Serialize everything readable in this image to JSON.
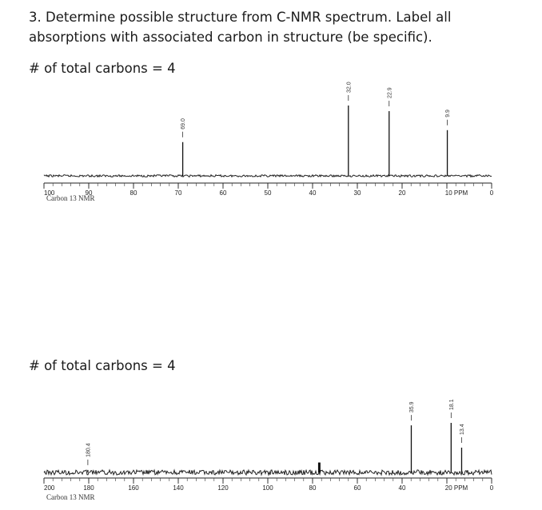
{
  "question": {
    "title": "3. Determine possible structure from C-NMR spectrum. Label all absorptions with associated carbon in structure (be specific).",
    "count1": "# of total carbons = 4",
    "count2": "# of total carbons = 4"
  },
  "chart_data": [
    {
      "type": "line",
      "xlabel": "",
      "ylabel": "",
      "x_reversed": true,
      "xlim": [
        100,
        0
      ],
      "tick_labels": [
        "100",
        "90",
        "80",
        "70",
        "60",
        "50",
        "40",
        "30",
        "20",
        "10 PPM",
        "0"
      ],
      "tick_values": [
        100,
        90,
        80,
        70,
        60,
        50,
        40,
        30,
        20,
        10,
        0
      ],
      "caption": "Carbon 13 NMR",
      "peaks": [
        {
          "ppm": 69.0,
          "label": "69.0",
          "height": 0.48
        },
        {
          "ppm": 32.0,
          "label": "32.0",
          "height": 1.0
        },
        {
          "ppm": 22.9,
          "label": "22.9",
          "height": 0.92
        },
        {
          "ppm": 9.9,
          "label": "9.9",
          "height": 0.65
        }
      ],
      "noise": 0.003
    },
    {
      "type": "line",
      "xlabel": "",
      "ylabel": "",
      "x_reversed": true,
      "xlim": [
        200,
        0
      ],
      "tick_labels": [
        "200",
        "180",
        "160",
        "140",
        "120",
        "100",
        "80",
        "60",
        "40",
        "20 PPM",
        "0"
      ],
      "tick_values": [
        200,
        180,
        160,
        140,
        120,
        100,
        80,
        60,
        40,
        20,
        0
      ],
      "caption": "Carbon 13 NMR",
      "peaks": [
        {
          "ppm": 180.4,
          "label": "180.4",
          "height": 0.05
        },
        {
          "ppm": 77.3,
          "label": "",
          "height": 0.2
        },
        {
          "ppm": 77.0,
          "label": "",
          "height": 0.2
        },
        {
          "ppm": 76.7,
          "label": "",
          "height": 0.2
        },
        {
          "ppm": 35.9,
          "label": "35.9",
          "height": 0.95
        },
        {
          "ppm": 18.1,
          "label": "18.1",
          "height": 1.0
        },
        {
          "ppm": 13.4,
          "label": "13.4",
          "height": 0.5
        }
      ],
      "noise": 0.01
    }
  ]
}
